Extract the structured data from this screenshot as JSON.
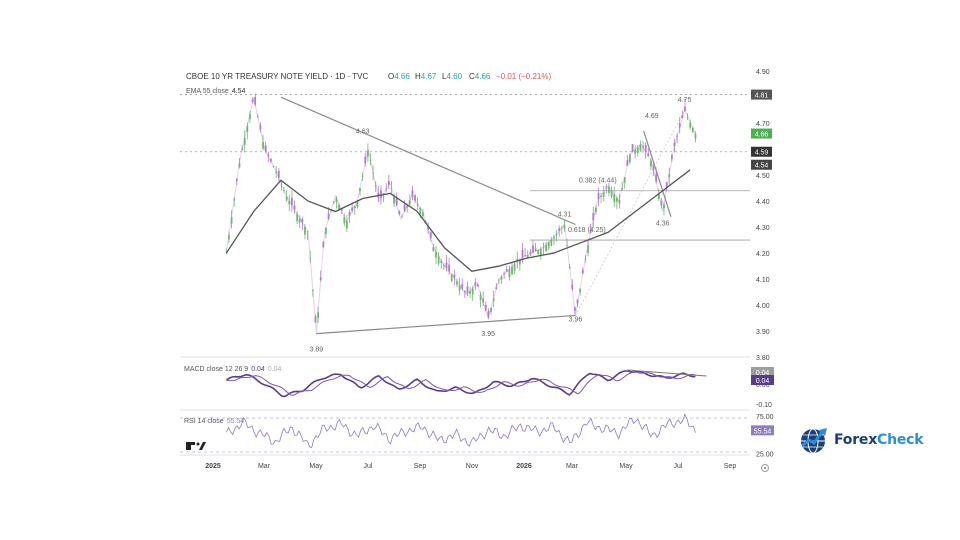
{
  "header": {
    "symbol": "CBOE 10 YR TREASURY NOTE YIELD · 1D · TVC",
    "ohlc": [
      {
        "k": "O",
        "v": "4.66"
      },
      {
        "k": "H",
        "v": "4.67"
      },
      {
        "k": "L",
        "v": "4.60"
      },
      {
        "k": "C",
        "v": "4.66"
      }
    ],
    "change": "−0.01 (−0.21%)",
    "ema_label": "EMA 55 close",
    "ema_value": "4.54"
  },
  "colors": {
    "up": "#26a69a",
    "down": "#ef5350",
    "candle": "#b07cc6",
    "candle_up": "#6fb86f",
    "ema": "#555555",
    "trendline": "#8a8a8a",
    "macd": "#5a3d8a",
    "signal": "#7b52c4",
    "rsi": "#8e7cc3",
    "last_price": "#4caf50",
    "ema_tag": "#444444"
  },
  "chart_data": [
    {
      "type": "line",
      "title": "CBOE 10 YR TREASURY NOTE YIELD · 1D · TVC",
      "xlabel": "",
      "ylabel": "",
      "x_ticks": [
        "2025",
        "Mar",
        "May",
        "Jul",
        "Sep",
        "Nov",
        "2026",
        "Mar",
        "May",
        "Jul",
        "Sep"
      ],
      "ylim": [
        3.8,
        4.92
      ],
      "y_ticks": [
        "4.90",
        "4.70",
        "4.60",
        "4.50",
        "4.40",
        "4.30",
        "4.20",
        "4.10",
        "4.00",
        "3.90",
        "3.80"
      ],
      "x_range": [
        -1.7,
        19.2
      ],
      "series": [
        {
          "role": "price",
          "x": [
            0,
            0.5,
            1,
            1.4,
            1.8,
            2.2,
            2.6,
            3,
            3.3,
            3.6,
            4,
            4.4,
            4.8,
            5.2,
            5.6,
            6,
            6.4,
            6.8,
            7.2,
            7.6,
            8,
            8.4,
            8.8,
            9.2,
            9.6,
            10,
            10.4,
            10.8,
            11.2,
            11.6,
            12,
            12.4,
            12.8,
            13.2,
            13.6,
            14,
            14.4,
            14.8,
            15.2,
            15.6,
            16,
            16.4,
            16.8,
            17.2
          ],
          "values": [
            4.2,
            4.56,
            4.8,
            4.6,
            4.52,
            4.42,
            4.35,
            4.28,
            3.89,
            4.28,
            4.42,
            4.32,
            4.4,
            4.6,
            4.4,
            4.47,
            4.33,
            4.42,
            4.36,
            4.22,
            4.15,
            4.1,
            4.04,
            4.08,
            3.95,
            4.1,
            4.14,
            4.18,
            4.2,
            4.22,
            4.26,
            4.31,
            3.96,
            4.2,
            4.4,
            4.46,
            4.4,
            4.58,
            4.62,
            4.55,
            4.36,
            4.6,
            4.75,
            4.66
          ]
        },
        {
          "role": "ema",
          "name": "EMA 55 close",
          "x": [
            0,
            1,
            2,
            3,
            4,
            5,
            6,
            7,
            8,
            9,
            10,
            11,
            12,
            13,
            14,
            15,
            16,
            17
          ],
          "values": [
            4.2,
            4.36,
            4.48,
            4.4,
            4.36,
            4.41,
            4.43,
            4.36,
            4.22,
            4.13,
            4.15,
            4.18,
            4.2,
            4.24,
            4.28,
            4.36,
            4.44,
            4.52
          ]
        }
      ],
      "annotations": [
        {
          "label": "4.63",
          "x": 5.0,
          "y": 4.63
        },
        {
          "label": "3.89",
          "x": 3.3,
          "y": 3.89
        },
        {
          "label": "3.95",
          "x": 9.6,
          "y": 3.95
        },
        {
          "label": "3.96",
          "x": 12.8,
          "y": 3.96
        },
        {
          "label": "4.31",
          "x": 12.4,
          "y": 4.31
        },
        {
          "label": "4.69",
          "x": 15.6,
          "y": 4.69
        },
        {
          "label": "4.75",
          "x": 16.8,
          "y": 4.75
        },
        {
          "label": "4.36",
          "x": 16.0,
          "y": 4.36
        },
        {
          "label": "0.382 (4.44)",
          "x": 13.0,
          "y": 4.44
        },
        {
          "label": "0.618 (4.25)",
          "x": 12.6,
          "y": 4.25
        }
      ],
      "trendlines": [
        {
          "x1": 2.0,
          "y1": 4.8,
          "x2": 12.8,
          "y2": 4.31
        },
        {
          "x1": 3.3,
          "y1": 3.89,
          "x2": 12.8,
          "y2": 3.96
        },
        {
          "x1": 15.3,
          "y1": 4.67,
          "x2": 16.3,
          "y2": 4.34
        }
      ],
      "levels": [
        4.81,
        4.59,
        4.44,
        4.25
      ],
      "price_tags": [
        {
          "label": "4.81",
          "value": 4.81,
          "color": "#555555"
        },
        {
          "label": "4.66",
          "value": 4.66,
          "color": "#4caf50"
        },
        {
          "label": "4.59",
          "value": 4.59,
          "color": "#333333"
        },
        {
          "label": "4.54",
          "value": 4.54,
          "color": "#444444"
        }
      ]
    },
    {
      "type": "line",
      "title": "MACD close 12 26 9",
      "legend_values": [
        "0.04",
        "0.04"
      ],
      "ylim": [
        -0.12,
        0.12
      ],
      "y_ticks": [
        "0.00",
        "-0.10"
      ],
      "x_range": [
        -1.7,
        19.2
      ],
      "series": [
        {
          "name": "MACD",
          "x": [
            0,
            0.7,
            1.4,
            2.1,
            2.8,
            3.5,
            4.2,
            4.9,
            5.6,
            6.3,
            7.0,
            7.7,
            8.4,
            9.1,
            9.8,
            10.5,
            11.2,
            11.9,
            12.6,
            13.3,
            14.0,
            14.7,
            15.4,
            16.1,
            16.8,
            17.2
          ],
          "values": [
            0.02,
            0.05,
            0.0,
            -0.06,
            -0.03,
            0.03,
            0.05,
            -0.02,
            0.04,
            -0.03,
            0.02,
            -0.04,
            -0.02,
            -0.05,
            0.01,
            -0.01,
            0.03,
            -0.01,
            -0.05,
            0.06,
            0.02,
            0.07,
            0.05,
            0.03,
            0.05,
            0.04
          ]
        }
      ]
    },
    {
      "type": "line",
      "title": "RSI 14 close",
      "legend_values": [
        "55.54"
      ],
      "ylim": [
        20,
        80
      ],
      "y_ticks": [
        "75.00",
        "25.00"
      ],
      "x_range": [
        -1.7,
        19.2
      ],
      "series": [
        {
          "name": "RSI",
          "x": [
            0,
            0.6,
            1.2,
            1.8,
            2.4,
            3.0,
            3.6,
            4.2,
            4.8,
            5.4,
            6.0,
            6.6,
            7.2,
            7.8,
            8.4,
            9.0,
            9.6,
            10.2,
            10.8,
            11.4,
            12.0,
            12.6,
            13.2,
            13.8,
            14.4,
            15.0,
            15.6,
            16.2,
            16.8,
            17.2
          ],
          "values": [
            50,
            66,
            52,
            40,
            60,
            35,
            58,
            64,
            48,
            62,
            44,
            55,
            60,
            42,
            50,
            38,
            56,
            48,
            62,
            54,
            60,
            38,
            66,
            58,
            52,
            72,
            48,
            64,
            70,
            56
          ]
        }
      ]
    }
  ],
  "price_axis_tags": {
    "macd_1": "0.04",
    "macd_2": "0.04",
    "rsi": "55.54"
  },
  "brand": {
    "logo_text_a": "Forex",
    "logo_text_b": "Check"
  }
}
